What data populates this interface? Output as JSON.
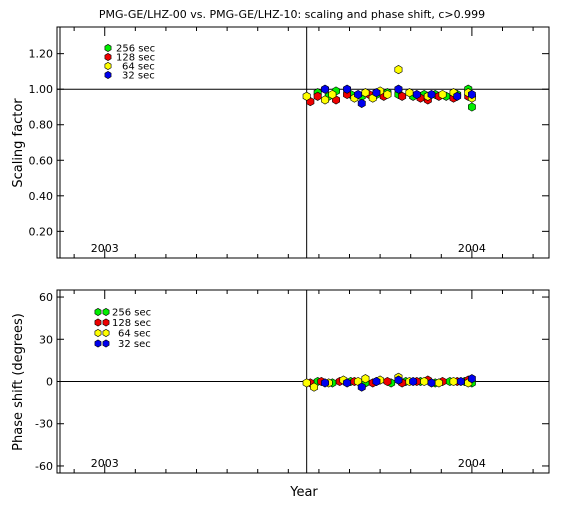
{
  "title": "PMG-GE/LHZ-00 vs. PMG-GE/LHZ-10: scaling and phase shift, c>0.999",
  "colors": {
    "c256": "#00ee00",
    "c128": "#ee0000",
    "c64": "#ffff00",
    "c32": "#0000ee",
    "axis": "#000000"
  },
  "chart_data": [
    {
      "type": "scatter",
      "name_key": "top",
      "ylabel": "Scaling factor",
      "xlabel": "",
      "xlim": [
        2002.87,
        2004.21
      ],
      "ylim": [
        0.05,
        1.35
      ],
      "yticks": [
        0.2,
        0.4,
        0.6,
        0.8,
        1.0,
        1.2
      ],
      "ytick_labels": [
        "0.20",
        "0.40",
        "0.60",
        "0.80",
        "1.00",
        "1.20"
      ],
      "xticks": [
        2003,
        2004
      ],
      "xtick_labels": [
        "2003",
        "2004"
      ],
      "vline": 2003.55,
      "hline": 1.0,
      "legend": [
        "256 sec",
        "128 sec",
        "64 sec",
        "32 sec"
      ],
      "series": [
        {
          "name": "256 sec",
          "key": "c256",
          "points": [
            [
              2003.58,
              0.98
            ],
            [
              2003.61,
              0.96
            ],
            [
              2003.63,
              0.99
            ],
            [
              2003.67,
              0.97
            ],
            [
              2003.7,
              0.96
            ],
            [
              2003.74,
              0.97
            ],
            [
              2003.77,
              0.98
            ],
            [
              2003.8,
              0.97
            ],
            [
              2003.84,
              0.96
            ],
            [
              2003.87,
              0.97
            ],
            [
              2003.9,
              0.97
            ],
            [
              2003.93,
              0.96
            ],
            [
              2003.96,
              0.97
            ],
            [
              2003.99,
              1.0
            ],
            [
              2004.0,
              0.9
            ],
            [
              2004.0,
              0.96
            ]
          ]
        },
        {
          "name": "128 sec",
          "key": "c128",
          "points": [
            [
              2003.56,
              0.93
            ],
            [
              2003.58,
              0.96
            ],
            [
              2003.63,
              0.94
            ],
            [
              2003.66,
              0.97
            ],
            [
              2003.72,
              0.97
            ],
            [
              2003.76,
              0.96
            ],
            [
              2003.81,
              0.96
            ],
            [
              2003.86,
              0.95
            ],
            [
              2003.88,
              0.94
            ],
            [
              2003.91,
              0.96
            ],
            [
              2003.95,
              0.95
            ],
            [
              2003.99,
              0.96
            ]
          ]
        },
        {
          "name": "64 sec",
          "key": "c64",
          "points": [
            [
              2003.55,
              0.96
            ],
            [
              2003.6,
              0.94
            ],
            [
              2003.62,
              0.97
            ],
            [
              2003.68,
              0.95
            ],
            [
              2003.71,
              0.98
            ],
            [
              2003.73,
              0.95
            ],
            [
              2003.75,
              0.99
            ],
            [
              2003.77,
              0.97
            ],
            [
              2003.8,
              1.11
            ],
            [
              2003.83,
              0.98
            ],
            [
              2003.88,
              0.96
            ],
            [
              2003.92,
              0.97
            ],
            [
              2003.95,
              0.98
            ],
            [
              2003.99,
              0.98
            ],
            [
              2004.0,
              0.95
            ]
          ]
        },
        {
          "name": "32 sec",
          "key": "c32",
          "points": [
            [
              2003.6,
              1.0
            ],
            [
              2003.66,
              1.0
            ],
            [
              2003.69,
              0.97
            ],
            [
              2003.7,
              0.92
            ],
            [
              2003.74,
              0.98
            ],
            [
              2003.8,
              1.0
            ],
            [
              2003.85,
              0.97
            ],
            [
              2003.89,
              0.97
            ],
            [
              2003.96,
              0.96
            ],
            [
              2004.0,
              0.97
            ]
          ]
        }
      ]
    },
    {
      "type": "scatter",
      "name_key": "bottom",
      "ylabel": "Phase shift (degrees)",
      "xlabel": "Year",
      "xlim": [
        2002.87,
        2004.21
      ],
      "ylim": [
        -65,
        65
      ],
      "yticks": [
        -60,
        -30,
        0,
        30,
        60
      ],
      "ytick_labels": [
        "-60",
        "-30",
        "0",
        "30",
        "60"
      ],
      "xticks": [
        2003,
        2004
      ],
      "xtick_labels": [
        "2003",
        "2004"
      ],
      "vline": 2003.55,
      "hline": 0,
      "legend": [
        "256 sec",
        "128 sec",
        "64 sec",
        "32 sec"
      ],
      "series": [
        {
          "name": "256 sec",
          "key": "c256",
          "points": [
            [
              2003.58,
              0
            ],
            [
              2003.62,
              -1
            ],
            [
              2003.67,
              0
            ],
            [
              2003.71,
              -1
            ],
            [
              2003.74,
              0
            ],
            [
              2003.78,
              -1
            ],
            [
              2003.82,
              0
            ],
            [
              2003.86,
              0
            ],
            [
              2003.9,
              -1
            ],
            [
              2003.94,
              0
            ],
            [
              2003.98,
              0
            ],
            [
              2004.0,
              -1
            ]
          ]
        },
        {
          "name": "128 sec",
          "key": "c128",
          "points": [
            [
              2003.56,
              -1
            ],
            [
              2003.59,
              0
            ],
            [
              2003.64,
              0
            ],
            [
              2003.68,
              0
            ],
            [
              2003.73,
              -1
            ],
            [
              2003.77,
              0
            ],
            [
              2003.81,
              -1
            ],
            [
              2003.85,
              0
            ],
            [
              2003.88,
              1
            ],
            [
              2003.92,
              0
            ],
            [
              2003.96,
              0
            ],
            [
              2003.99,
              1
            ]
          ]
        },
        {
          "name": "64 sec",
          "key": "c64",
          "points": [
            [
              2003.55,
              -1
            ],
            [
              2003.57,
              -4
            ],
            [
              2003.61,
              -1
            ],
            [
              2003.65,
              1
            ],
            [
              2003.69,
              0
            ],
            [
              2003.71,
              2
            ],
            [
              2003.75,
              1
            ],
            [
              2003.8,
              3
            ],
            [
              2003.83,
              0
            ],
            [
              2003.87,
              0
            ],
            [
              2003.91,
              -1
            ],
            [
              2003.95,
              0
            ],
            [
              2003.99,
              -1
            ]
          ]
        },
        {
          "name": "32 sec",
          "key": "c32",
          "points": [
            [
              2003.6,
              -1
            ],
            [
              2003.66,
              -1
            ],
            [
              2003.7,
              -4
            ],
            [
              2003.74,
              0
            ],
            [
              2003.8,
              1
            ],
            [
              2003.84,
              0
            ],
            [
              2003.89,
              -1
            ],
            [
              2003.97,
              0
            ],
            [
              2004.0,
              2
            ]
          ]
        }
      ]
    }
  ]
}
